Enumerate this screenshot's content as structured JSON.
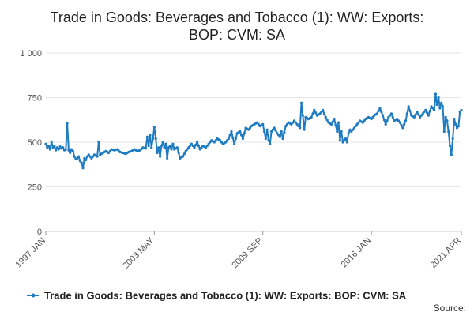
{
  "chart_data": {
    "type": "line",
    "title_lines": [
      "Trade in Goods: Beverages and Tobacco (1): WW: Exports:",
      "BOP: CVM: SA"
    ],
    "xlabel": "",
    "ylabel": "",
    "ylim": [
      0,
      1000
    ],
    "yticks": [
      0,
      250,
      500,
      750,
      1000
    ],
    "ytick_labels": [
      "0",
      "250",
      "500",
      "750",
      "1 000"
    ],
    "x_start": "1997 JAN",
    "x_end": "2021 APR",
    "xticks": [
      {
        "label": "1997 JAN",
        "index": 0
      },
      {
        "label": "2003 MAY",
        "index": 76
      },
      {
        "label": "2009 SEP",
        "index": 152
      },
      {
        "label": "2016 JAN",
        "index": 228
      },
      {
        "label": "2021 APR",
        "index": 291
      }
    ],
    "grid": true,
    "series": [
      {
        "name": "Trade in Goods: Beverages and Tobacco (1): WW: Exports: BOP: CVM: SA",
        "color": "#1f7bc1",
        "anchors": [
          [
            0,
            490
          ],
          [
            1,
            470
          ],
          [
            2,
            480
          ],
          [
            3,
            460
          ],
          [
            4,
            500
          ],
          [
            5,
            470
          ],
          [
            6,
            480
          ],
          [
            7,
            455
          ],
          [
            8,
            470
          ],
          [
            9,
            460
          ],
          [
            10,
            475
          ],
          [
            11,
            465
          ],
          [
            12,
            470
          ],
          [
            13,
            455
          ],
          [
            14,
            460
          ],
          [
            15,
            605
          ],
          [
            16,
            455
          ],
          [
            17,
            440
          ],
          [
            18,
            460
          ],
          [
            19,
            450
          ],
          [
            20,
            420
          ],
          [
            21,
            405
          ],
          [
            22,
            410
          ],
          [
            23,
            420
          ],
          [
            24,
            395
          ],
          [
            25,
            385
          ],
          [
            26,
            355
          ],
          [
            27,
            410
          ],
          [
            28,
            400
          ],
          [
            29,
            420
          ],
          [
            30,
            430
          ],
          [
            32,
            410
          ],
          [
            34,
            430
          ],
          [
            36,
            420
          ],
          [
            37,
            500
          ],
          [
            38,
            430
          ],
          [
            40,
            440
          ],
          [
            42,
            450
          ],
          [
            44,
            440
          ],
          [
            46,
            460
          ],
          [
            48,
            455
          ],
          [
            50,
            460
          ],
          [
            52,
            445
          ],
          [
            54,
            440
          ],
          [
            56,
            435
          ],
          [
            58,
            445
          ],
          [
            60,
            450
          ],
          [
            62,
            460
          ],
          [
            64,
            450
          ],
          [
            66,
            455
          ],
          [
            68,
            470
          ],
          [
            70,
            465
          ],
          [
            71,
            530
          ],
          [
            72,
            480
          ],
          [
            73,
            540
          ],
          [
            74,
            470
          ],
          [
            75,
            520
          ],
          [
            76,
            585
          ],
          [
            77,
            520
          ],
          [
            78,
            440
          ],
          [
            79,
            470
          ],
          [
            80,
            420
          ],
          [
            81,
            480
          ],
          [
            82,
            500
          ],
          [
            83,
            470
          ],
          [
            84,
            490
          ],
          [
            85,
            410
          ],
          [
            86,
            470
          ],
          [
            87,
            480
          ],
          [
            88,
            460
          ],
          [
            89,
            490
          ],
          [
            90,
            460
          ],
          [
            92,
            470
          ],
          [
            94,
            410
          ],
          [
            96,
            420
          ],
          [
            98,
            450
          ],
          [
            100,
            470
          ],
          [
            102,
            490
          ],
          [
            104,
            470
          ],
          [
            106,
            500
          ],
          [
            108,
            460
          ],
          [
            110,
            480
          ],
          [
            112,
            470
          ],
          [
            114,
            490
          ],
          [
            116,
            510
          ],
          [
            118,
            500
          ],
          [
            120,
            520
          ],
          [
            122,
            510
          ],
          [
            124,
            490
          ],
          [
            126,
            500
          ],
          [
            128,
            520
          ],
          [
            130,
            560
          ],
          [
            132,
            490
          ],
          [
            134,
            550
          ],
          [
            136,
            560
          ],
          [
            138,
            520
          ],
          [
            140,
            580
          ],
          [
            142,
            570
          ],
          [
            144,
            590
          ],
          [
            146,
            600
          ],
          [
            148,
            610
          ],
          [
            150,
            590
          ],
          [
            152,
            600
          ],
          [
            154,
            520
          ],
          [
            155,
            570
          ],
          [
            156,
            510
          ],
          [
            157,
            490
          ],
          [
            158,
            560
          ],
          [
            160,
            580
          ],
          [
            162,
            550
          ],
          [
            164,
            530
          ],
          [
            165,
            560
          ],
          [
            166,
            520
          ],
          [
            168,
            590
          ],
          [
            170,
            610
          ],
          [
            172,
            600
          ],
          [
            174,
            620
          ],
          [
            176,
            600
          ],
          [
            178,
            580
          ],
          [
            179,
            720
          ],
          [
            180,
            650
          ],
          [
            181,
            570
          ],
          [
            182,
            640
          ],
          [
            184,
            630
          ],
          [
            186,
            640
          ],
          [
            188,
            680
          ],
          [
            190,
            650
          ],
          [
            192,
            660
          ],
          [
            194,
            680
          ],
          [
            196,
            640
          ],
          [
            198,
            610
          ],
          [
            200,
            600
          ],
          [
            202,
            630
          ],
          [
            204,
            560
          ],
          [
            205,
            610
          ],
          [
            206,
            510
          ],
          [
            207,
            560
          ],
          [
            208,
            500
          ],
          [
            210,
            520
          ],
          [
            211,
            500
          ],
          [
            212,
            550
          ],
          [
            213,
            570
          ],
          [
            214,
            560
          ],
          [
            216,
            580
          ],
          [
            218,
            600
          ],
          [
            220,
            620
          ],
          [
            222,
            610
          ],
          [
            224,
            630
          ],
          [
            226,
            640
          ],
          [
            228,
            630
          ],
          [
            230,
            650
          ],
          [
            232,
            660
          ],
          [
            234,
            690
          ],
          [
            236,
            650
          ],
          [
            238,
            600
          ],
          [
            240,
            640
          ],
          [
            242,
            660
          ],
          [
            244,
            620
          ],
          [
            246,
            630
          ],
          [
            248,
            610
          ],
          [
            250,
            580
          ],
          [
            252,
            620
          ],
          [
            254,
            700
          ],
          [
            256,
            650
          ],
          [
            258,
            640
          ],
          [
            260,
            670
          ],
          [
            262,
            640
          ],
          [
            264,
            660
          ],
          [
            266,
            680
          ],
          [
            268,
            650
          ],
          [
            270,
            700
          ],
          [
            272,
            680
          ],
          [
            273,
            770
          ],
          [
            274,
            710
          ],
          [
            275,
            750
          ],
          [
            276,
            690
          ],
          [
            277,
            720
          ],
          [
            278,
            700
          ],
          [
            279,
            560
          ],
          [
            280,
            640
          ],
          [
            281,
            620
          ],
          [
            282,
            560
          ],
          [
            283,
            480
          ],
          [
            284,
            430
          ],
          [
            285,
            520
          ],
          [
            286,
            630
          ],
          [
            287,
            600
          ],
          [
            288,
            580
          ],
          [
            289,
            590
          ],
          [
            290,
            670
          ],
          [
            291,
            680
          ]
        ]
      }
    ],
    "legend_position": "bottom-center",
    "source_label": "Source:"
  }
}
